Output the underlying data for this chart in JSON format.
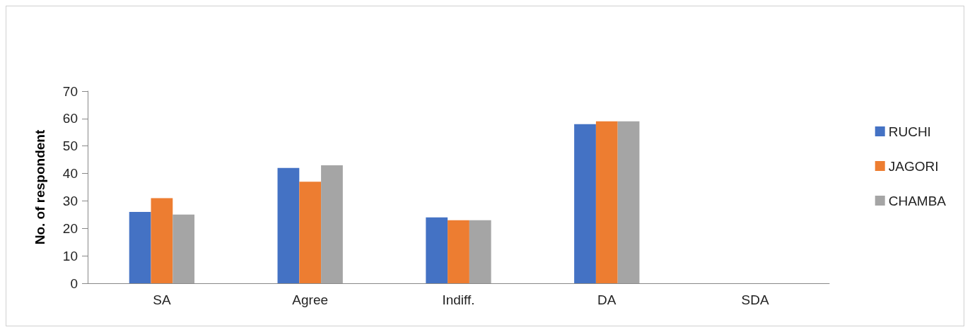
{
  "chart_data": {
    "type": "bar",
    "ylabel": "No. of respondent",
    "categories": [
      "SA",
      "Agree",
      "Indiff.",
      "DA",
      "SDA"
    ],
    "series": [
      {
        "name": "RUCHI",
        "color": "#4472c4",
        "values": [
          26,
          42,
          24,
          58,
          0
        ]
      },
      {
        "name": "JAGORI",
        "color": "#ed7d31",
        "values": [
          31,
          37,
          23,
          59,
          0
        ]
      },
      {
        "name": "CHAMBA",
        "color": "#a5a5a5",
        "values": [
          25,
          43,
          23,
          59,
          0
        ]
      }
    ],
    "ylim": [
      0,
      70
    ],
    "yticks": [
      0,
      10,
      20,
      30,
      40,
      50,
      60,
      70
    ],
    "grid": false,
    "legend": "right"
  }
}
